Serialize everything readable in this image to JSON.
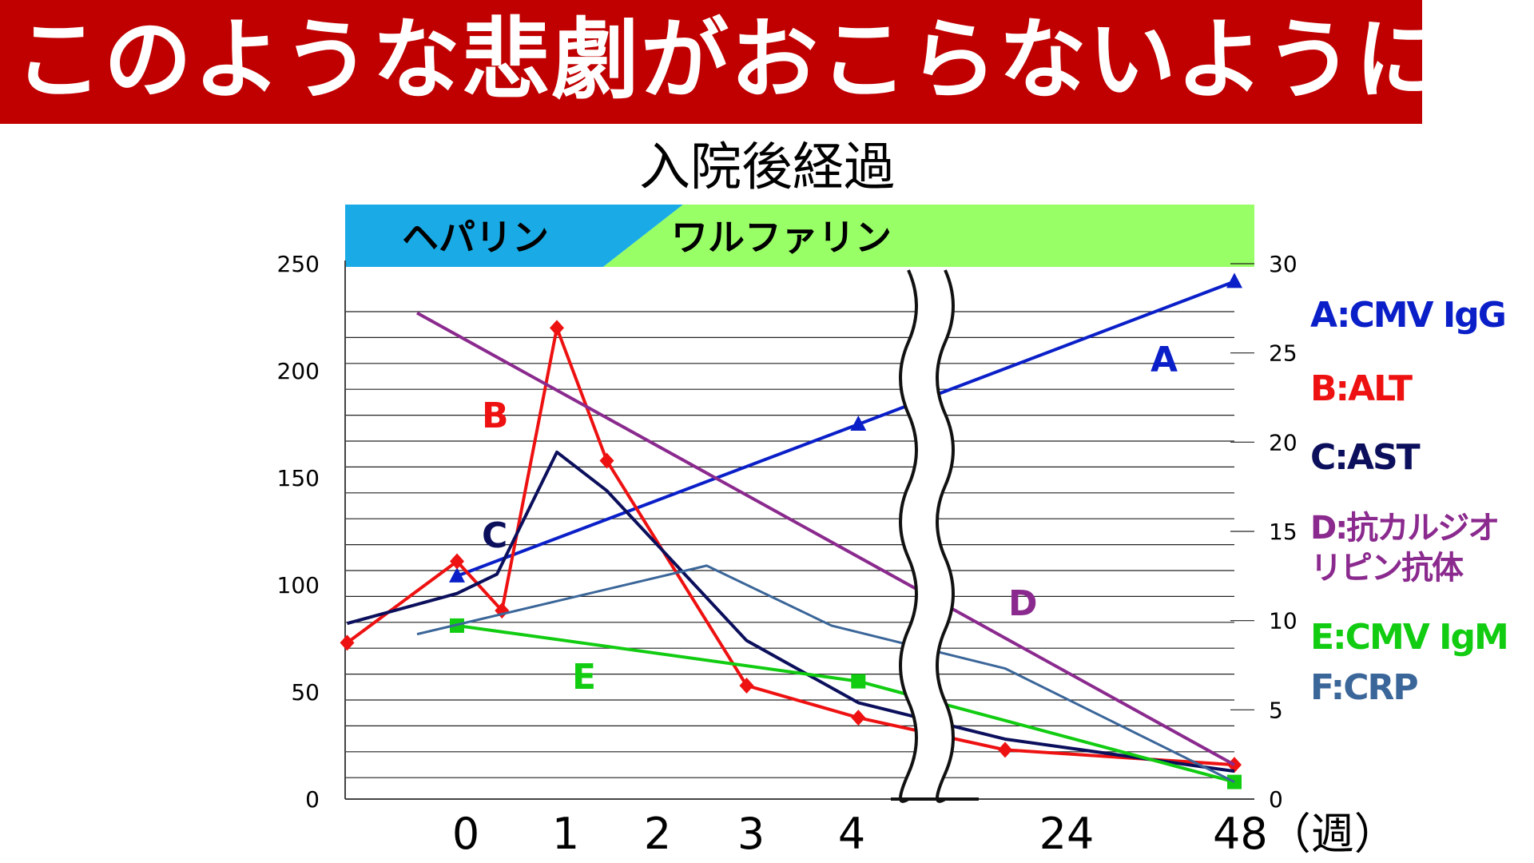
{
  "banner": {
    "text": "このような悲劇がおこらないように",
    "color": "#c00000"
  },
  "chart_data": {
    "type": "line",
    "title": "入院後経過",
    "x_tick_labels": [
      "0",
      "1",
      "2",
      "3",
      "4",
      "24",
      "48（週）"
    ],
    "y_left": {
      "ticks": [
        "250",
        "200",
        "150",
        "100",
        "50",
        "0"
      ],
      "range": [
        0,
        250
      ]
    },
    "y_right": {
      "ticks": [
        "30",
        "25",
        "20",
        "15",
        "10",
        "5",
        "0"
      ],
      "range": [
        0,
        30
      ]
    },
    "phases": [
      {
        "label": "ヘパリン",
        "color": "#1aabe6"
      },
      {
        "label": "ワルファリン",
        "color": "#99ff66"
      }
    ],
    "axis_break": "between 4 and 24",
    "grid": true,
    "legend_position": "right",
    "series": [
      {
        "name": "A:CMV IgG",
        "letter": "A",
        "color": "#0a1fc8",
        "marker": "triangle",
        "axis": "right",
        "points": [
          [
            0,
            12.5
          ],
          [
            4.25,
            21
          ],
          [
            48,
            29
          ]
        ]
      },
      {
        "name": "B:ALT",
        "letter": "B",
        "color": "#ee1111",
        "marker": "diamond",
        "axis": "left",
        "points": [
          [
            -1.1,
            73
          ],
          [
            0,
            111
          ],
          [
            0.45,
            88
          ],
          [
            1,
            220
          ],
          [
            1.5,
            158
          ],
          [
            2.9,
            53
          ],
          [
            4.25,
            38
          ],
          [
            24,
            23
          ],
          [
            48,
            16
          ]
        ]
      },
      {
        "name": "C:AST",
        "letter": "C",
        "color": "#0b0f5c",
        "marker": "none",
        "axis": "left",
        "points": [
          [
            -1.1,
            82
          ],
          [
            0,
            96
          ],
          [
            0.4,
            105
          ],
          [
            1,
            162
          ],
          [
            1.5,
            144
          ],
          [
            2.9,
            74
          ],
          [
            4.25,
            45
          ],
          [
            24,
            28
          ],
          [
            48,
            13
          ]
        ]
      },
      {
        "name": "D:抗カルジオリピン抗体",
        "letter": "D",
        "color": "#8b2a8e",
        "marker": "none",
        "axis": "left",
        "points": [
          [
            -0.4,
            227
          ],
          [
            48,
            16
          ]
        ]
      },
      {
        "name": "E:CMV IgM",
        "letter": "E",
        "color": "#11cc11",
        "marker": "square",
        "axis": "left",
        "points": [
          [
            0,
            81
          ],
          [
            4.25,
            55
          ],
          [
            48,
            8
          ]
        ]
      },
      {
        "name": "F:CRP",
        "letter": "F",
        "color": "#3b6699",
        "marker": "none",
        "axis": "left",
        "points": [
          [
            -0.4,
            77
          ],
          [
            2.5,
            109
          ],
          [
            3.75,
            81
          ],
          [
            24,
            61
          ],
          [
            48,
            8
          ]
        ]
      }
    ]
  }
}
